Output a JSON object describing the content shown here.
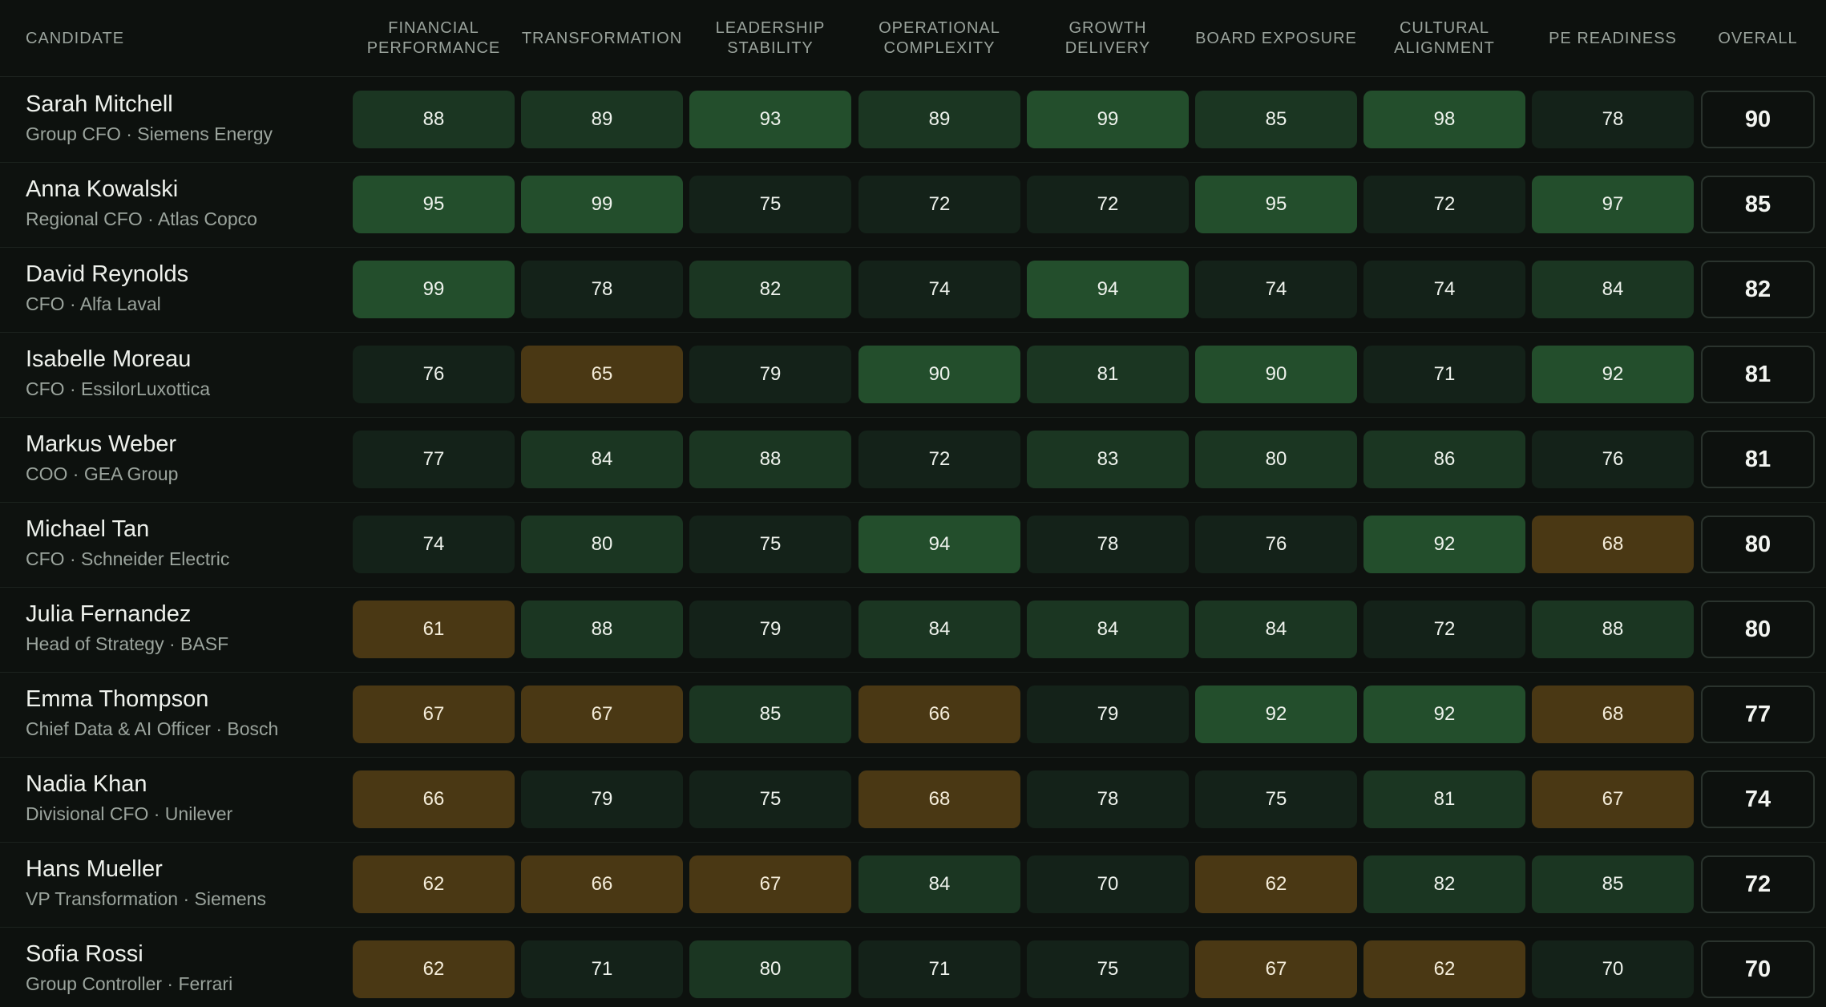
{
  "headers": {
    "candidate": "CANDIDATE",
    "columns": [
      "FINANCIAL\nPERFORMANCE",
      "TRANSFORMATION",
      "LEADERSHIP\nSTABILITY",
      "OPERATIONAL\nCOMPLEXITY",
      "GROWTH DELIVERY",
      "BOARD EXPOSURE",
      "CULTURAL\nALIGNMENT",
      "PE READINESS"
    ],
    "overall": "OVERALL"
  },
  "colors": {
    "background": "#0d110e",
    "cell_low_green": "#142219",
    "cell_mid_green": "#1b3622",
    "cell_high_green": "#234e2c",
    "cell_amber": "#4a3814"
  },
  "candidates": [
    {
      "name": "Sarah Mitchell",
      "role": "Group CFO · Siemens Energy",
      "scores": [
        88,
        89,
        93,
        89,
        99,
        85,
        98,
        78
      ],
      "overall": 90
    },
    {
      "name": "Anna Kowalski",
      "role": "Regional CFO · Atlas Copco",
      "scores": [
        95,
        99,
        75,
        72,
        72,
        95,
        72,
        97
      ],
      "overall": 85
    },
    {
      "name": "David Reynolds",
      "role": "CFO · Alfa Laval",
      "scores": [
        99,
        78,
        82,
        74,
        94,
        74,
        74,
        84
      ],
      "overall": 82
    },
    {
      "name": "Isabelle Moreau",
      "role": "CFO · EssilorLuxottica",
      "scores": [
        76,
        65,
        79,
        90,
        81,
        90,
        71,
        92
      ],
      "overall": 81
    },
    {
      "name": "Markus Weber",
      "role": "COO · GEA Group",
      "scores": [
        77,
        84,
        88,
        72,
        83,
        80,
        86,
        76
      ],
      "overall": 81
    },
    {
      "name": "Michael Tan",
      "role": "CFO · Schneider Electric",
      "scores": [
        74,
        80,
        75,
        94,
        78,
        76,
        92,
        68
      ],
      "overall": 80
    },
    {
      "name": "Julia Fernandez",
      "role": "Head of Strategy · BASF",
      "scores": [
        61,
        88,
        79,
        84,
        84,
        84,
        72,
        88
      ],
      "overall": 80
    },
    {
      "name": "Emma Thompson",
      "role": "Chief Data & AI Officer · Bosch",
      "scores": [
        67,
        67,
        85,
        66,
        79,
        92,
        92,
        68
      ],
      "overall": 77
    },
    {
      "name": "Nadia Khan",
      "role": "Divisional CFO · Unilever",
      "scores": [
        66,
        79,
        75,
        68,
        78,
        75,
        81,
        67
      ],
      "overall": 74
    },
    {
      "name": "Hans Mueller",
      "role": "VP Transformation · Siemens",
      "scores": [
        62,
        66,
        67,
        84,
        70,
        62,
        82,
        85
      ],
      "overall": 72
    },
    {
      "name": "Sofia Rossi",
      "role": "Group Controller · Ferrari",
      "scores": [
        62,
        71,
        80,
        71,
        75,
        67,
        62,
        70
      ],
      "overall": 70
    }
  ]
}
